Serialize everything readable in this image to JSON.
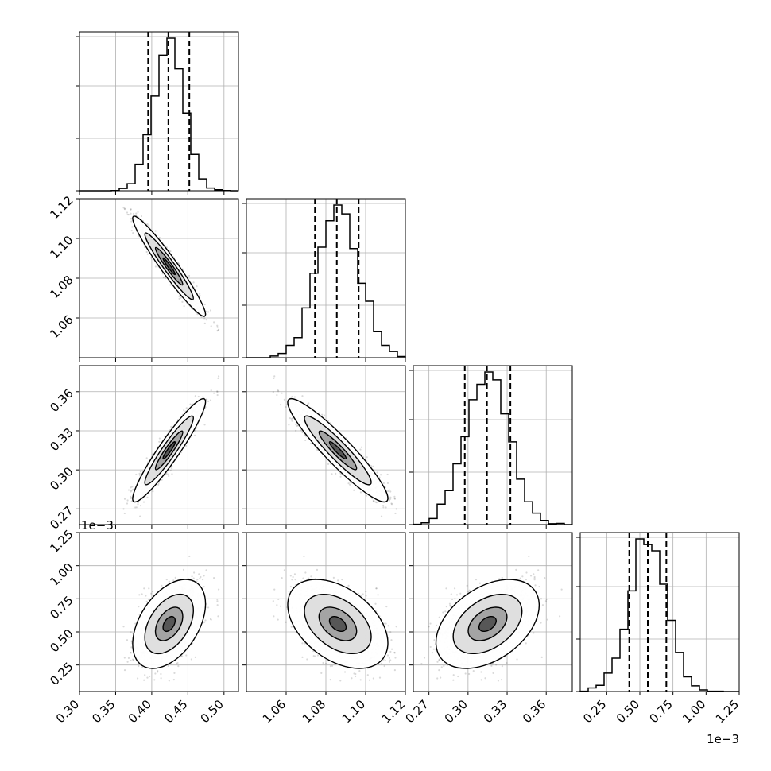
{
  "chart_data": {
    "type": "corner",
    "grid": true,
    "parameters": [
      {
        "index": 0,
        "range": [
          0.3,
          0.52
        ],
        "ticks": [
          "0.30",
          "0.35",
          "0.40",
          "0.45",
          "0.50"
        ],
        "tick_values": [
          0.3,
          0.35,
          0.4,
          0.45,
          0.5
        ],
        "quantiles": [
          0.395,
          0.423,
          0.452
        ],
        "mean": 0.424,
        "sd": 0.021
      },
      {
        "index": 1,
        "range": [
          1.04,
          1.12
        ],
        "ticks": [
          "1.06",
          "1.08",
          "1.10",
          "1.12"
        ],
        "tick_values": [
          1.06,
          1.08,
          1.1,
          1.12
        ],
        "quantiles": [
          1.0745,
          1.0855,
          1.0965
        ],
        "mean": 1.086,
        "sd": 0.0105
      },
      {
        "index": 2,
        "range": [
          0.258,
          0.38
        ],
        "ticks": [
          "0.27",
          "0.30",
          "0.33",
          "0.36"
        ],
        "tick_values": [
          0.27,
          0.3,
          0.33,
          0.36
        ],
        "quantiles": [
          0.2975,
          0.3145,
          0.3325
        ],
        "mean": 0.315,
        "sd": 0.0165
      },
      {
        "index": 3,
        "range": [
          0.05,
          1.25
        ],
        "ticks": [
          "0.25",
          "0.50",
          "0.75",
          "1.00",
          "1.25"
        ],
        "tick_values": [
          0.25,
          0.5,
          0.75,
          1.0,
          1.25
        ],
        "quantiles": [
          0.42,
          0.56,
          0.7
        ],
        "mean": 0.56,
        "sd": 0.14,
        "offset_label": "1e−3"
      }
    ],
    "correlations": [
      {
        "pair": [
          0,
          1
        ],
        "rho": -0.96
      },
      {
        "pair": [
          0,
          2
        ],
        "rho": 0.94
      },
      {
        "pair": [
          1,
          2
        ],
        "rho": -0.93
      },
      {
        "pair": [
          0,
          3
        ],
        "rho": 0.45
      },
      {
        "pair": [
          1,
          3
        ],
        "rho": -0.43
      },
      {
        "pair": [
          2,
          3
        ],
        "rho": 0.42
      }
    ],
    "histogram": {
      "bins": 20,
      "style": "step",
      "quantile_line_style": "dashed"
    },
    "contour_levels": 3,
    "xlabel": "",
    "ylabel": "",
    "title": ""
  }
}
